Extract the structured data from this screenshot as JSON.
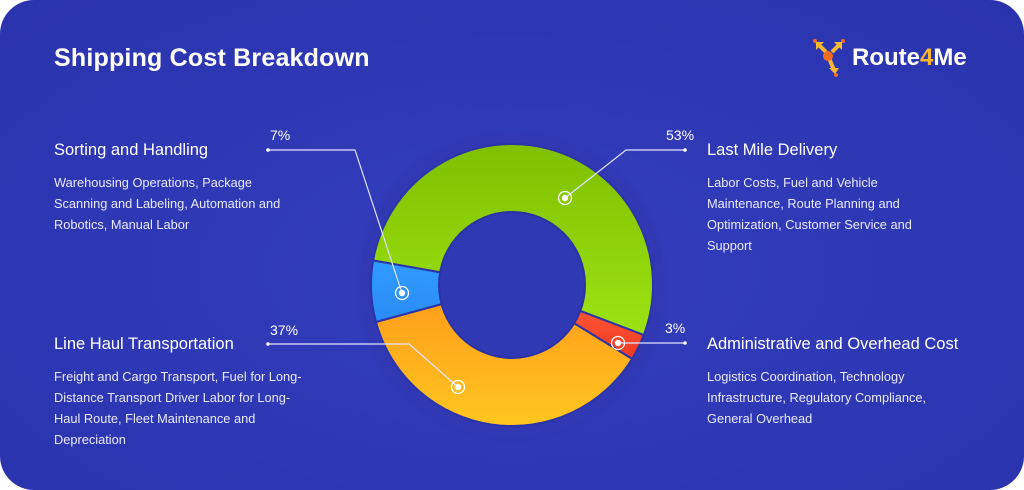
{
  "title": "Shipping Cost Breakdown",
  "logo": {
    "text_main": "Route",
    "text_accent": "4",
    "text_end": "Me"
  },
  "chart_data": {
    "type": "pie",
    "style": "donut",
    "categories": [
      "Last Mile Delivery",
      "Administrative and Overhead Cost",
      "Line Haul Transportation",
      "Sorting and Handling"
    ],
    "values": [
      53,
      3,
      37,
      7
    ],
    "unit": "%",
    "data_labels": [
      "53%",
      "3%",
      "37%",
      "7%"
    ],
    "colors": [
      "#8fd20c",
      "#f2452a",
      "#ffb21a",
      "#2f9bff"
    ],
    "legend": "none"
  },
  "sections": [
    {
      "key": "sorting",
      "heading": "Sorting and Handling",
      "pct": "7%",
      "body": "Warehousing Operations, Package Scanning and Labeling, Automation and Robotics, Manual Labor"
    },
    {
      "key": "last_mile",
      "heading": "Last Mile Delivery",
      "pct": "53%",
      "body": "Labor Costs, Fuel and Vehicle Maintenance, Route Planning and Optimization, Customer Service and Support"
    },
    {
      "key": "line_haul",
      "heading": "Line Haul Transportation",
      "pct": "37%",
      "body": "Freight and Cargo Transport, Fuel for Long-Distance Transport Driver Labor for Long-Haul Route, Fleet Maintenance and Depreciation"
    },
    {
      "key": "admin",
      "heading": "Administrative and Overhead Cost",
      "pct": "3%",
      "body": "Logistics Coordination, Technology Infrastructure, Regulatory Compliance, General Overhead"
    }
  ]
}
